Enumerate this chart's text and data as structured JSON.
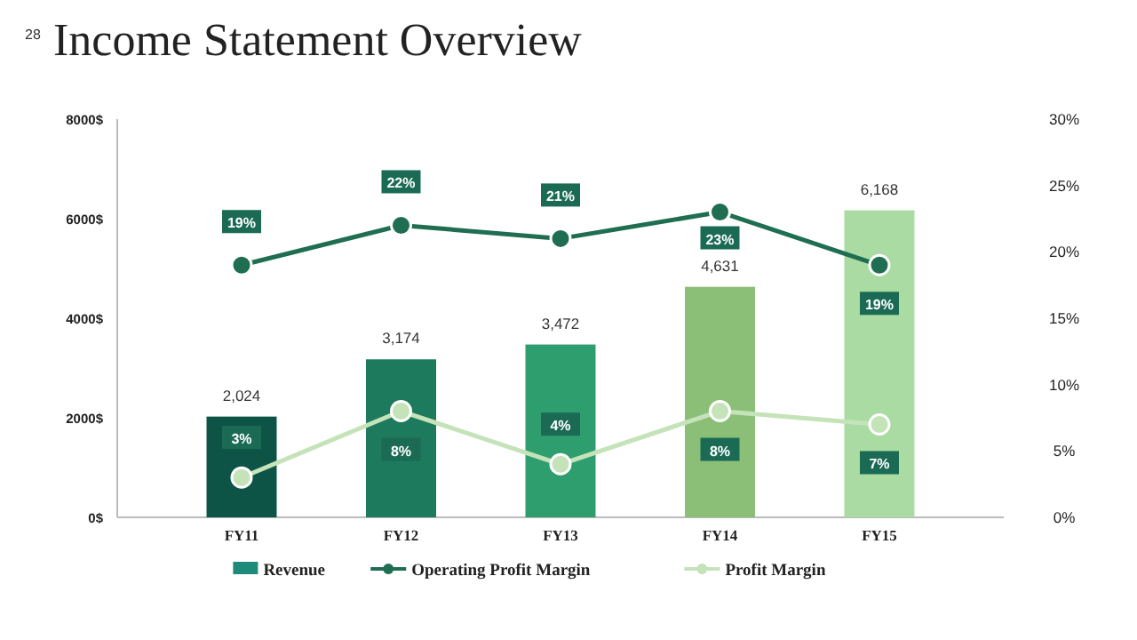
{
  "chart_data": {
    "type": "bar",
    "title": "Income Statement Overview",
    "annotations": [
      "28"
    ],
    "categories": [
      "FY11",
      "FY12",
      "FY13",
      "FY14",
      "FY15"
    ],
    "series": [
      {
        "name": "Revenue",
        "colors": [
          "#0d5447",
          "#1e7a5c",
          "#2f9e6e",
          "#8bbf78",
          "#a9dba3"
        ],
        "color": "#1e8a7a",
        "values": [
          2024,
          3174,
          3472,
          4631,
          6168
        ],
        "value_labels": [
          "2,024",
          "3,174",
          "3,472",
          "4,631",
          "6,168"
        ]
      },
      {
        "name": "Operating Profit Margin",
        "type": "line",
        "axis": "y2",
        "color": "#1f6e52",
        "marker": "circle",
        "values": [
          19,
          22,
          21,
          23,
          19
        ],
        "value_labels": [
          "19%",
          "22%",
          "21%",
          "23%",
          "19%"
        ]
      },
      {
        "name": "Profit Margin",
        "type": "line",
        "axis": "y2",
        "color": "#c5e3b9",
        "marker": "circle",
        "values": [
          3,
          8,
          4,
          8,
          7
        ],
        "value_labels": [
          "3%",
          "8%",
          "4%",
          "8%",
          "7%"
        ]
      }
    ],
    "ylim": [
      0,
      8000
    ],
    "yticks": [
      {
        "value": 0,
        "label": "0$"
      },
      {
        "value": 2000,
        "label": "2000$"
      },
      {
        "value": 4000,
        "label": "4000$"
      },
      {
        "value": 6000,
        "label": "6000$"
      },
      {
        "value": 8000,
        "label": "8000$"
      }
    ],
    "y2lim": [
      0,
      30
    ],
    "y2ticks": [
      {
        "value": 0,
        "label": "0%"
      },
      {
        "value": 5,
        "label": "5%"
      },
      {
        "value": 10,
        "label": "10%"
      },
      {
        "value": 15,
        "label": "15%"
      },
      {
        "value": 20,
        "label": "20%"
      },
      {
        "value": 25,
        "label": "25%"
      },
      {
        "value": 30,
        "label": "30%"
      }
    ],
    "grid": false,
    "legend": "bottom"
  }
}
